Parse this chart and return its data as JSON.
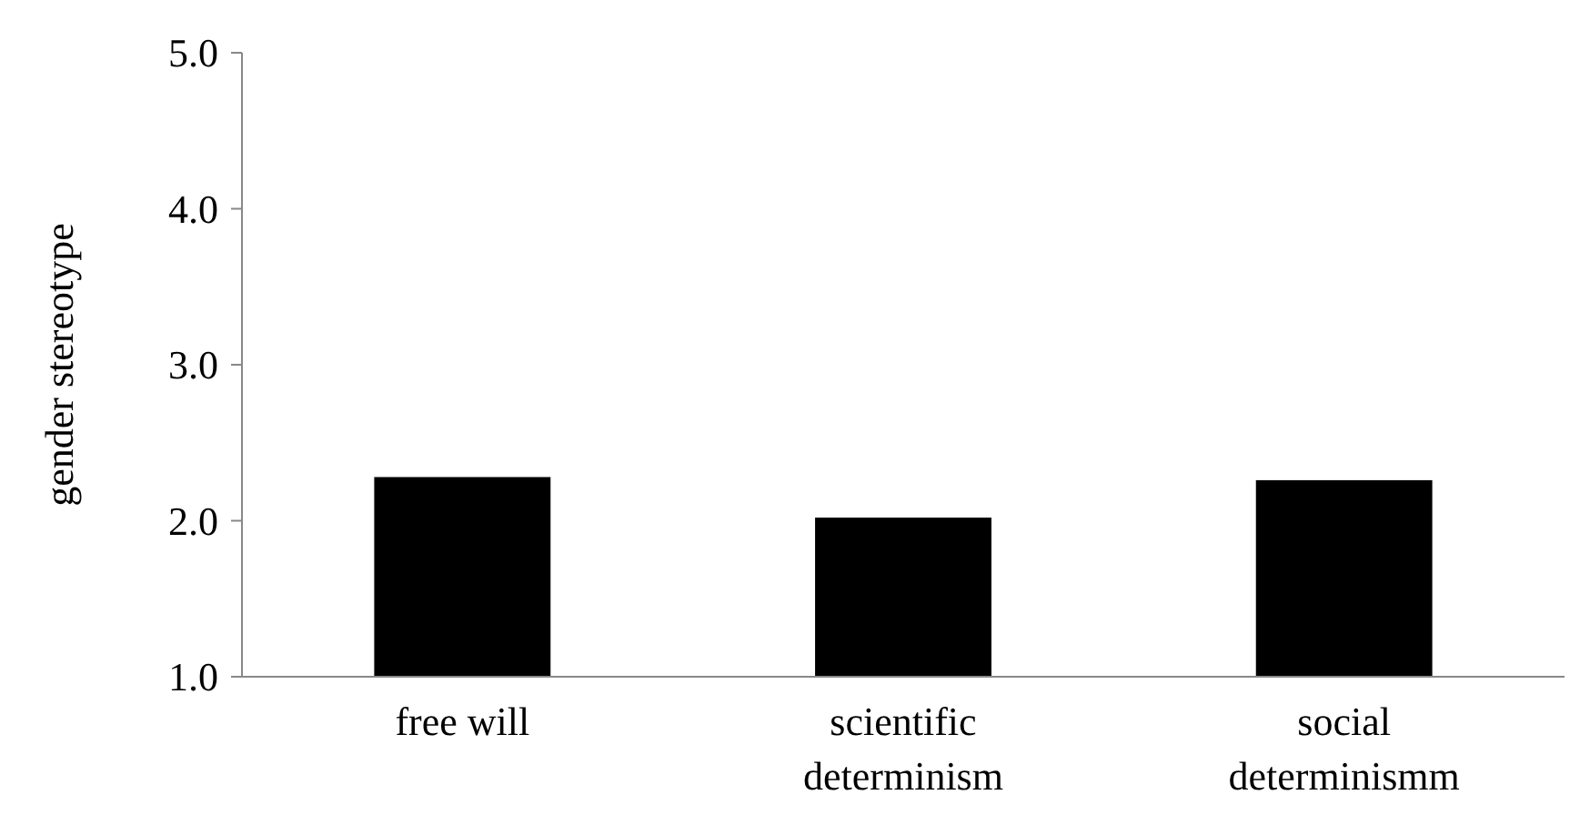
{
  "chart_data": {
    "type": "bar",
    "ylabel": "gender stereotype",
    "categories": [
      "free will",
      "scientific determinism",
      "social determinismm"
    ],
    "values": [
      2.28,
      2.02,
      2.26
    ],
    "color": "#000000",
    "ylim": [
      1,
      5
    ],
    "yticks": [
      {
        "value": 1,
        "label": "1.0"
      },
      {
        "value": 2,
        "label": "2.0"
      },
      {
        "value": 3,
        "label": "3.0"
      },
      {
        "value": 4,
        "label": "4.0"
      },
      {
        "value": 5,
        "label": "5.0"
      }
    ],
    "grid": false
  }
}
